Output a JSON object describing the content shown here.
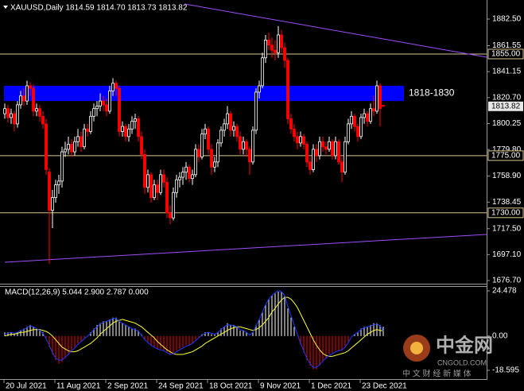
{
  "chart_data": [
    {
      "type": "candlestick",
      "title": "XAUUSD,Daily  1814.59 1814.70 1813.73 1813.82",
      "ylim": [
        1676.7,
        1882.5
      ],
      "yticks": [
        {
          "value": 1882.5,
          "label": "1882.50"
        },
        1861.55,
        1841.15,
        {
          "value": 1820.7,
          "label": "1820.70"
        },
        1800.25,
        {
          "value": 1779.8,
          "label": "1779.80"
        },
        {
          "value": 1758.9,
          "label": "1758.90"
        },
        1738.45,
        {
          "value": 1717.5,
          "label": "1717.50"
        },
        {
          "value": 1697.1,
          "label": "1697.10"
        },
        {
          "value": 1676.7,
          "label": "1676.70"
        }
      ],
      "xticks": [
        {
          "value": 0,
          "label": "20 Jul 2021"
        },
        {
          "value": 16,
          "label": "11 Aug 2021"
        },
        {
          "value": 32,
          "label": "2 Sep 2021"
        },
        {
          "value": 48,
          "label": "24 Sep 2021"
        },
        {
          "value": 64,
          "label": "18 Oct 2021"
        },
        {
          "value": 80,
          "label": "9 Nov 2021"
        },
        {
          "value": 96,
          "label": "1 Dec 2021"
        },
        {
          "value": 112,
          "label": "23 Dec 2021"
        }
      ],
      "up_color": "#ffffff",
      "down_color": "#ff0000",
      "ohlc": [
        [
          1808,
          1816,
          1804,
          1812
        ],
        [
          1812,
          1815,
          1801,
          1805
        ],
        [
          1805,
          1812,
          1800,
          1808
        ],
        [
          1808,
          1810,
          1794,
          1800
        ],
        [
          1800,
          1818,
          1797,
          1815
        ],
        [
          1815,
          1826,
          1812,
          1822
        ],
        [
          1822,
          1828,
          1814,
          1818
        ],
        [
          1818,
          1834,
          1815,
          1830
        ],
        [
          1830,
          1833,
          1822,
          1828
        ],
        [
          1828,
          1831,
          1806,
          1810
        ],
        [
          1810,
          1816,
          1806,
          1812
        ],
        [
          1812,
          1815,
          1802,
          1806
        ],
        [
          1806,
          1810,
          1796,
          1800
        ],
        [
          1800,
          1804,
          1760,
          1764
        ],
        [
          1762,
          1765,
          1690,
          1732
        ],
        [
          1732,
          1748,
          1718,
          1742
        ],
        [
          1742,
          1756,
          1738,
          1752
        ],
        [
          1752,
          1760,
          1745,
          1755
        ],
        [
          1755,
          1782,
          1750,
          1778
        ],
        [
          1778,
          1786,
          1774,
          1780
        ],
        [
          1780,
          1790,
          1776,
          1784
        ],
        [
          1784,
          1788,
          1774,
          1778
        ],
        [
          1778,
          1790,
          1775,
          1786
        ],
        [
          1786,
          1796,
          1782,
          1790
        ],
        [
          1790,
          1794,
          1778,
          1782
        ],
        [
          1782,
          1800,
          1780,
          1796
        ],
        [
          1796,
          1800,
          1790,
          1794
        ],
        [
          1794,
          1810,
          1792,
          1806
        ],
        [
          1806,
          1816,
          1802,
          1812
        ],
        [
          1812,
          1818,
          1806,
          1814
        ],
        [
          1814,
          1824,
          1810,
          1818
        ],
        [
          1818,
          1822,
          1810,
          1815
        ],
        [
          1815,
          1820,
          1806,
          1810
        ],
        [
          1810,
          1830,
          1808,
          1826
        ],
        [
          1826,
          1836,
          1822,
          1832
        ],
        [
          1832,
          1834,
          1822,
          1828
        ],
        [
          1828,
          1830,
          1790,
          1794
        ],
        [
          1794,
          1802,
          1790,
          1798
        ],
        [
          1798,
          1800,
          1786,
          1790
        ],
        [
          1790,
          1800,
          1786,
          1796
        ],
        [
          1796,
          1806,
          1792,
          1802
        ],
        [
          1802,
          1808,
          1796,
          1804
        ],
        [
          1804,
          1806,
          1786,
          1790
        ],
        [
          1790,
          1794,
          1772,
          1776
        ],
        [
          1776,
          1780,
          1745,
          1750
        ],
        [
          1750,
          1764,
          1746,
          1760
        ],
        [
          1760,
          1762,
          1738,
          1742
        ],
        [
          1742,
          1756,
          1740,
          1752
        ],
        [
          1752,
          1756,
          1740,
          1746
        ],
        [
          1746,
          1764,
          1744,
          1760
        ],
        [
          1760,
          1764,
          1750,
          1754
        ],
        [
          1754,
          1758,
          1726,
          1730
        ],
        [
          1730,
          1736,
          1721,
          1726
        ],
        [
          1726,
          1750,
          1724,
          1746
        ],
        [
          1746,
          1760,
          1742,
          1756
        ],
        [
          1756,
          1762,
          1750,
          1758
        ],
        [
          1758,
          1766,
          1752,
          1762
        ],
        [
          1762,
          1770,
          1756,
          1766
        ],
        [
          1766,
          1768,
          1754,
          1757
        ],
        [
          1757,
          1764,
          1752,
          1760
        ],
        [
          1760,
          1784,
          1758,
          1780
        ],
        [
          1780,
          1784,
          1770,
          1774
        ],
        [
          1774,
          1796,
          1772,
          1792
        ],
        [
          1792,
          1800,
          1788,
          1796
        ],
        [
          1796,
          1798,
          1776,
          1780
        ],
        [
          1780,
          1784,
          1760,
          1766
        ],
        [
          1766,
          1774,
          1762,
          1770
        ],
        [
          1770,
          1788,
          1766,
          1785
        ],
        [
          1785,
          1798,
          1782,
          1795
        ],
        [
          1795,
          1804,
          1790,
          1800
        ],
        [
          1800,
          1814,
          1796,
          1808
        ],
        [
          1808,
          1810,
          1790,
          1795
        ],
        [
          1795,
          1802,
          1790,
          1798
        ],
        [
          1798,
          1800,
          1786,
          1790
        ],
        [
          1790,
          1794,
          1776,
          1780
        ],
        [
          1780,
          1790,
          1776,
          1786
        ],
        [
          1786,
          1788,
          1774,
          1780
        ],
        [
          1780,
          1782,
          1760,
          1770
        ],
        [
          1770,
          1798,
          1768,
          1795
        ],
        [
          1795,
          1828,
          1792,
          1825
        ],
        [
          1825,
          1834,
          1820,
          1830
        ],
        [
          1830,
          1856,
          1828,
          1852
        ],
        [
          1852,
          1870,
          1848,
          1866
        ],
        [
          1866,
          1872,
          1858,
          1862
        ],
        [
          1862,
          1868,
          1852,
          1858
        ],
        [
          1858,
          1866,
          1850,
          1856
        ],
        [
          1856,
          1877,
          1852,
          1870
        ],
        [
          1870,
          1874,
          1856,
          1860
        ],
        [
          1860,
          1864,
          1844,
          1850
        ],
        [
          1850,
          1852,
          1800,
          1804
        ],
        [
          1804,
          1808,
          1792,
          1796
        ],
        [
          1796,
          1800,
          1786,
          1790
        ],
        [
          1790,
          1794,
          1780,
          1785
        ],
        [
          1785,
          1794,
          1782,
          1790
        ],
        [
          1790,
          1792,
          1780,
          1784
        ],
        [
          1784,
          1786,
          1766,
          1770
        ],
        [
          1770,
          1774,
          1760,
          1764
        ],
        [
          1764,
          1784,
          1762,
          1780
        ],
        [
          1780,
          1784,
          1770,
          1775
        ],
        [
          1775,
          1790,
          1772,
          1786
        ],
        [
          1786,
          1790,
          1778,
          1782
        ],
        [
          1782,
          1786,
          1776,
          1780
        ],
        [
          1780,
          1790,
          1778,
          1786
        ],
        [
          1786,
          1788,
          1772,
          1775
        ],
        [
          1775,
          1790,
          1772,
          1786
        ],
        [
          1786,
          1788,
          1768,
          1770
        ],
        [
          1770,
          1774,
          1754,
          1762
        ],
        [
          1762,
          1790,
          1760,
          1786
        ],
        [
          1786,
          1804,
          1784,
          1800
        ],
        [
          1800,
          1810,
          1796,
          1806
        ],
        [
          1806,
          1808,
          1794,
          1798
        ],
        [
          1798,
          1800,
          1786,
          1790
        ],
        [
          1790,
          1808,
          1788,
          1805
        ],
        [
          1805,
          1812,
          1800,
          1808
        ],
        [
          1808,
          1810,
          1798,
          1802
        ],
        [
          1802,
          1816,
          1800,
          1812
        ],
        [
          1812,
          1822,
          1806,
          1810
        ],
        [
          1810,
          1834,
          1808,
          1830
        ],
        [
          1830,
          1832,
          1798,
          1812
        ],
        [
          1814.59,
          1814.7,
          1813.73,
          1813.82
        ]
      ],
      "zone": {
        "from": 1818,
        "to": 1830,
        "label": "1818-1830",
        "color": "#0000ff",
        "label_color": "#f5d76e"
      },
      "levels": [
        {
          "value": 1855,
          "label": "1855.00"
        },
        {
          "value": 1775,
          "label": "1775.00"
        },
        {
          "value": 1730,
          "label": "1730.00"
        }
      ],
      "level_color": "#d9c58a",
      "last_price": 1813.82,
      "trendline_color": "#a04cff",
      "trendlines": [
        {
          "points": [
            [
              56.5,
              1894.4
            ],
            [
              151.5,
              1852.5
            ]
          ]
        },
        {
          "points": [
            [
              0,
              1691.1
            ],
            [
              151.5,
              1713.0
            ]
          ]
        }
      ]
    },
    {
      "type": "macd",
      "title": "MACD(12,26,9) 5.044 2.900 2.787 0.000",
      "ylim": [
        -18.595,
        24.478
      ],
      "yticks": [
        24.478,
        {
          "value": 0,
          "label": "0.00"
        },
        -18.595
      ],
      "histogram": {
        "up_color": "#ffffff",
        "down_color": "#ff0000",
        "values": [
          2,
          2,
          2,
          1,
          2,
          3,
          4,
          5,
          6,
          5,
          4,
          3,
          2,
          -1,
          -6,
          -10,
          -13,
          -15,
          -14,
          -12,
          -10,
          -8,
          -6,
          -4,
          -3,
          -1,
          0,
          2,
          4,
          6,
          7,
          8,
          8,
          9,
          10,
          10,
          8,
          7,
          6,
          5,
          4,
          4,
          3,
          1,
          -2,
          -3,
          -5,
          -6,
          -7,
          -7,
          -8,
          -9,
          -10,
          -9,
          -8,
          -7,
          -6,
          -5,
          -5,
          -4,
          -2,
          -1,
          1,
          2,
          2,
          1,
          1,
          2,
          4,
          5,
          7,
          6,
          6,
          5,
          3,
          3,
          2,
          0,
          2,
          6,
          9,
          13,
          17,
          20,
          22,
          23,
          24,
          24,
          22,
          15,
          10,
          5,
          0,
          -5,
          -9,
          -13,
          -16,
          -18,
          -18,
          -16,
          -14,
          -12,
          -10,
          -9,
          -8,
          -8,
          -8,
          -6,
          -3,
          0,
          1,
          2,
          4,
          5,
          5,
          6,
          7,
          7,
          6,
          5.044
        ]
      },
      "series": [
        {
          "color": "#ffff33",
          "values": [
            0,
            0.5,
            1,
            1,
            1.5,
            2,
            2,
            2.5,
            3,
            3.5,
            3.5,
            3.5,
            3,
            2.5,
            1.5,
            0,
            -2,
            -4,
            -6,
            -7,
            -8,
            -8.5,
            -8.5,
            -8,
            -7,
            -6,
            -5,
            -4,
            -2.5,
            -1,
            1,
            2.5,
            4,
            5.5,
            7,
            8,
            8.5,
            9,
            8.5,
            8,
            7.5,
            7,
            6,
            5,
            3.5,
            2,
            0.5,
            -1,
            -3,
            -4.5,
            -6,
            -7.5,
            -8.5,
            -9.5,
            -10,
            -10,
            -10,
            -9.5,
            -9,
            -8.5,
            -7.5,
            -6.5,
            -5.5,
            -4,
            -3,
            -2,
            -1,
            0,
            1,
            2,
            3,
            4,
            4.5,
            5,
            5,
            4.5,
            4,
            3.5,
            3,
            3.5,
            4.5,
            6,
            8,
            10,
            13,
            15,
            17.5,
            19.5,
            21,
            21,
            20,
            18,
            15.5,
            12,
            8.5,
            5,
            1.5,
            -2,
            -5,
            -7.5,
            -9.5,
            -10.5,
            -11,
            -11,
            -10.5,
            -10,
            -9.5,
            -9,
            -8,
            -6.5,
            -5,
            -3.5,
            -2,
            -0.5,
            1,
            2,
            3,
            3.5,
            3,
            2.9
          ]
        },
        {
          "color": "#1a3cff",
          "values": [
            1,
            1.5,
            2,
            1.5,
            2,
            3,
            3.5,
            4.5,
            5.5,
            5,
            4,
            3,
            1.5,
            -1.5,
            -5,
            -9,
            -12,
            -13,
            -13,
            -11.5,
            -10,
            -8,
            -6.5,
            -4.5,
            -3,
            -1.5,
            0,
            1.5,
            3.5,
            5,
            6.5,
            7.5,
            8,
            8.5,
            9.5,
            9.5,
            8,
            7,
            6,
            5,
            4,
            3.5,
            2.5,
            0.5,
            -2,
            -3.5,
            -5,
            -6,
            -7,
            -7.5,
            -8,
            -9,
            -10,
            -9.5,
            -8.5,
            -7.5,
            -6.5,
            -5.5,
            -5,
            -4,
            -2.5,
            -1,
            0.5,
            1.5,
            2,
            1.5,
            1,
            2,
            3.5,
            5,
            6,
            6,
            5.5,
            5,
            3.5,
            3,
            2,
            0.5,
            2,
            5.5,
            9,
            13,
            17,
            20,
            22,
            23.5,
            24.5,
            24,
            22,
            16,
            11,
            6,
            1,
            -4,
            -8,
            -12,
            -15,
            -17,
            -17,
            -15.5,
            -13.5,
            -12,
            -10.5,
            -9.5,
            -8.5,
            -8,
            -7.5,
            -6,
            -3.5,
            -0.5,
            1,
            2,
            3.5,
            4.5,
            5,
            5.5,
            6,
            6.5,
            5.5,
            2.787
          ]
        }
      ]
    }
  ],
  "watermark": {
    "brand": "中金网",
    "site": "CNGOLD.COM",
    "slogan": "中 文 财 经 新 媒 体"
  }
}
